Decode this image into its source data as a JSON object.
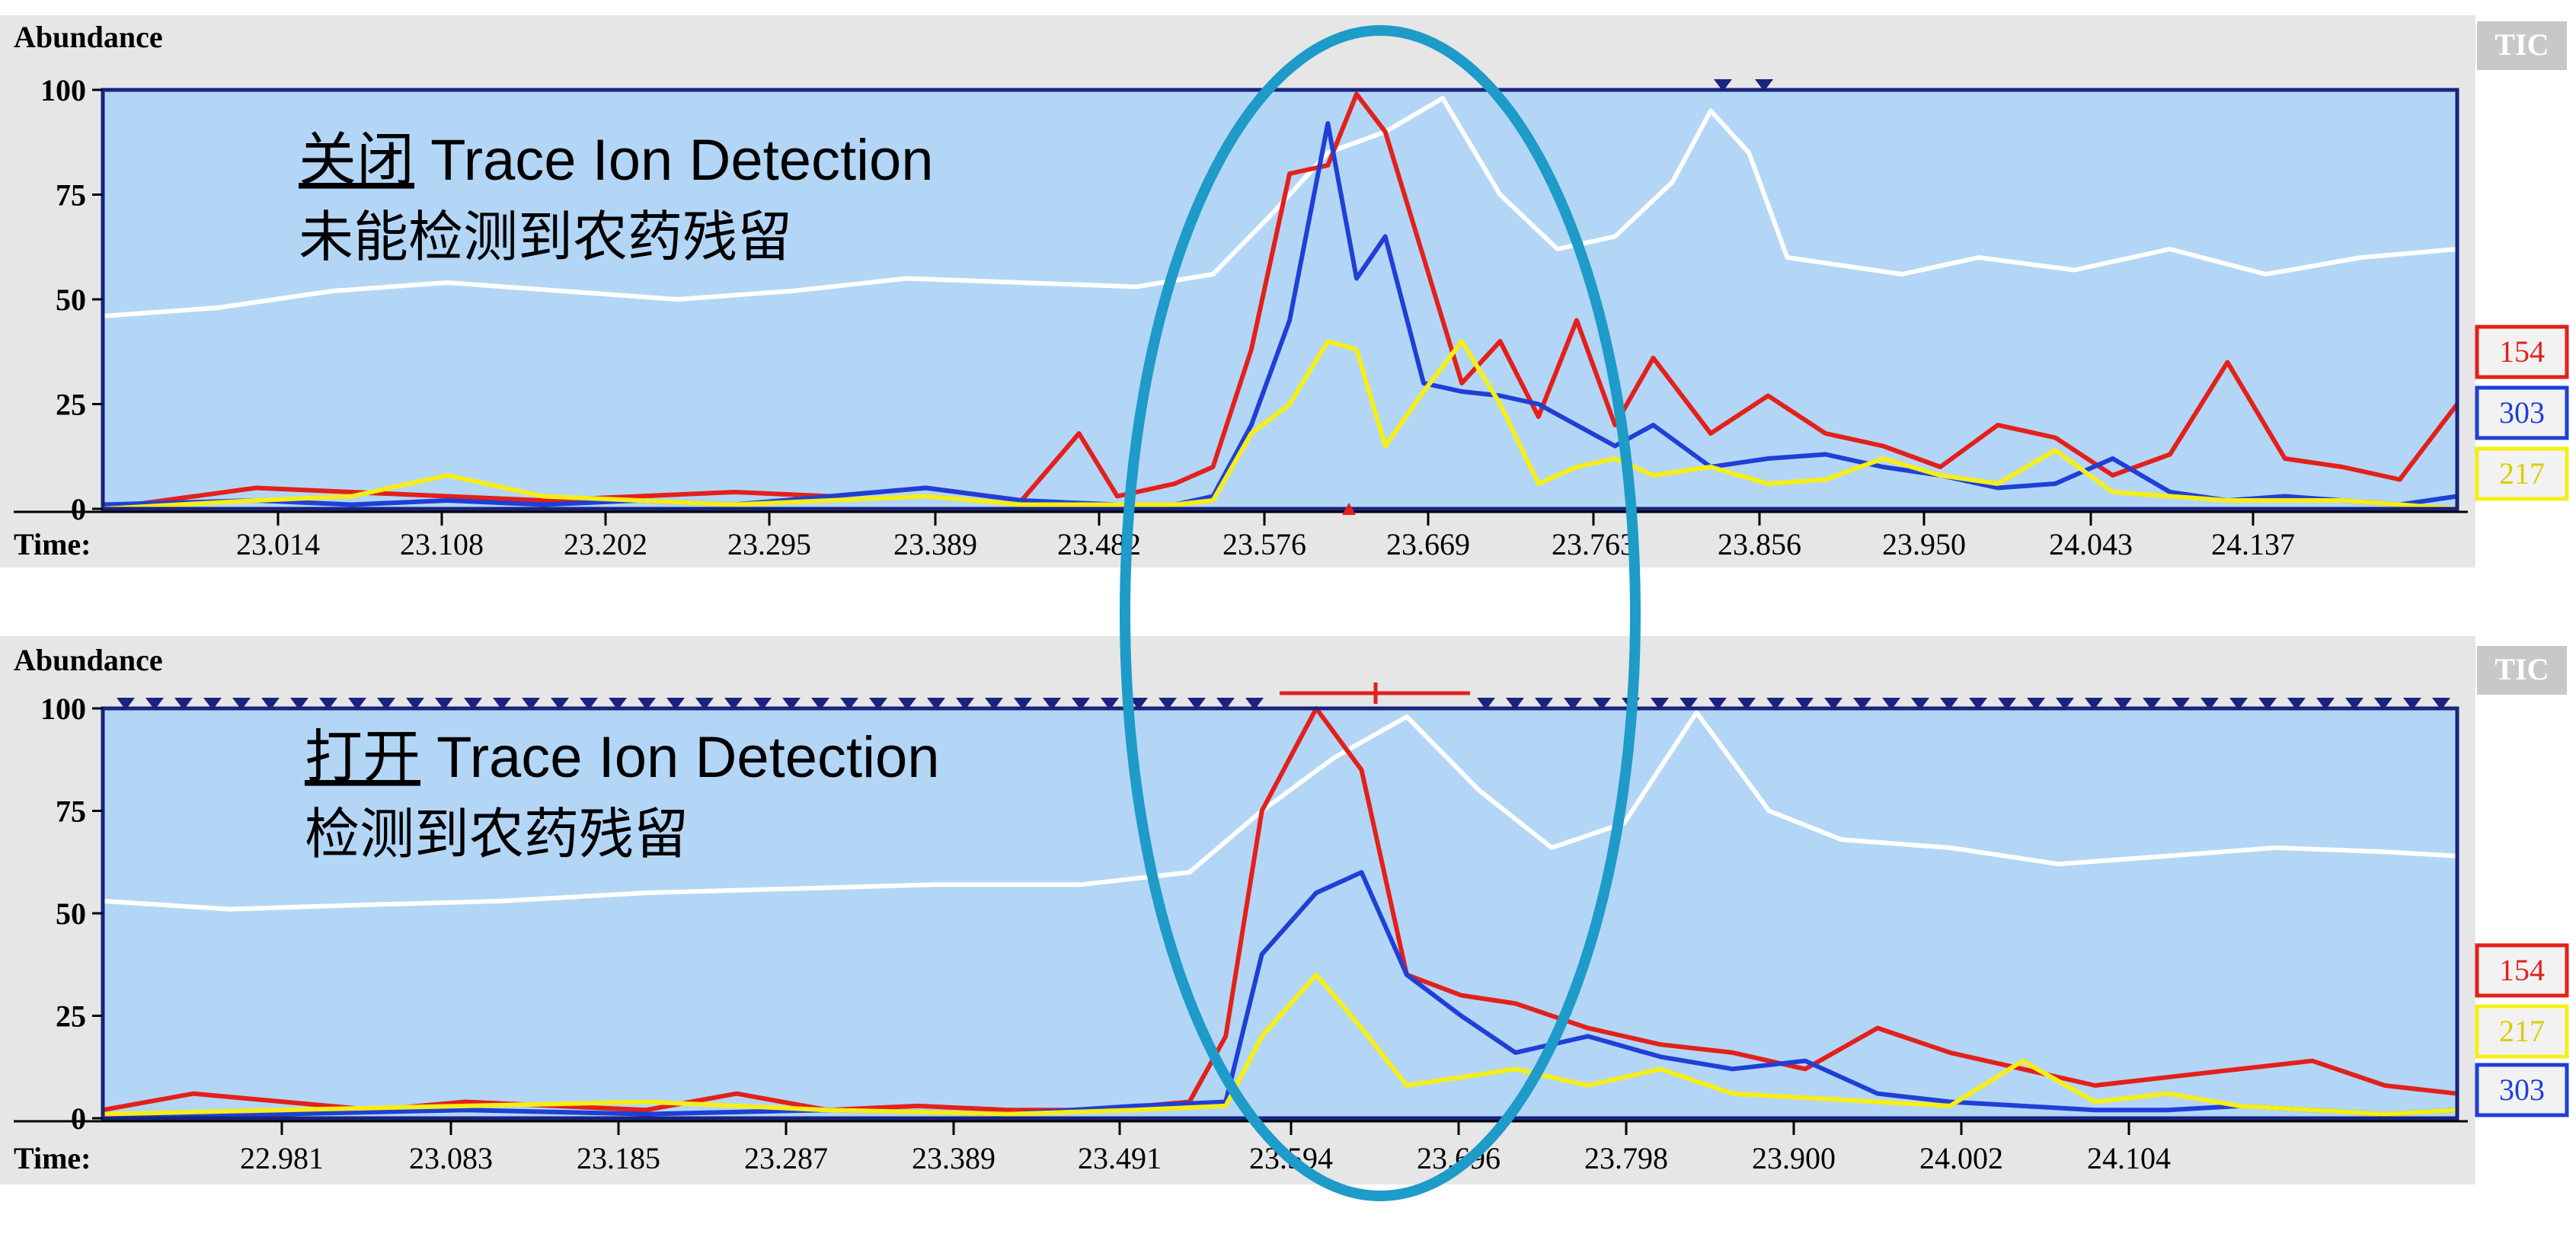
{
  "chart_data": [
    {
      "type": "line",
      "ylabel": "Abundance",
      "xlabel": "Time:",
      "ylim": [
        0,
        100
      ],
      "xlim": [
        22.92,
        24.15
      ],
      "yticks": [
        "0",
        "25",
        "50",
        "75",
        "100"
      ],
      "xticks": [
        "23.014",
        "23.108",
        "23.202",
        "23.295",
        "23.389",
        "23.482",
        "23.576",
        "23.669",
        "23.763",
        "23.856",
        "23.950",
        "24.043",
        "24.137"
      ],
      "annotation": {
        "emphasis": "关闭",
        "title": " Trace Ion Detection",
        "subtitle": "未能检测到农药残留"
      },
      "tic_label": "TIC",
      "series": [
        {
          "name": "154",
          "color": "#e3201b",
          "x": [
            22.92,
            23.0,
            23.05,
            23.1,
            23.15,
            23.2,
            23.25,
            23.3,
            23.35,
            23.4,
            23.43,
            23.45,
            23.48,
            23.5,
            23.52,
            23.54,
            23.56,
            23.575,
            23.59,
            23.61,
            23.63,
            23.65,
            23.67,
            23.69,
            23.71,
            23.73,
            23.76,
            23.79,
            23.82,
            23.85,
            23.88,
            23.91,
            23.94,
            23.97,
            24.0,
            24.03,
            24.06,
            24.09,
            24.12,
            24.15
          ],
          "y": [
            0,
            5,
            4,
            3,
            2,
            3,
            4,
            3,
            5,
            2,
            18,
            3,
            6,
            10,
            38,
            80,
            82,
            99,
            90,
            60,
            30,
            40,
            22,
            45,
            20,
            36,
            18,
            27,
            18,
            15,
            10,
            20,
            17,
            8,
            13,
            35,
            12,
            10,
            7,
            25
          ]
        },
        {
          "name": "303",
          "color": "#1f3fd6",
          "x": [
            22.92,
            23.0,
            23.05,
            23.1,
            23.15,
            23.2,
            23.25,
            23.3,
            23.35,
            23.4,
            23.45,
            23.48,
            23.5,
            23.52,
            23.54,
            23.56,
            23.575,
            23.59,
            23.61,
            23.63,
            23.65,
            23.67,
            23.69,
            23.71,
            23.73,
            23.76,
            23.79,
            23.82,
            23.85,
            23.88,
            23.91,
            23.94,
            23.97,
            24.0,
            24.03,
            24.06,
            24.09,
            24.12,
            24.15
          ],
          "y": [
            1,
            2,
            1,
            2,
            1,
            2,
            1,
            3,
            5,
            2,
            1,
            1,
            3,
            20,
            45,
            92,
            55,
            65,
            30,
            28,
            27,
            25,
            20,
            15,
            20,
            10,
            12,
            13,
            10,
            8,
            5,
            6,
            12,
            4,
            2,
            3,
            2,
            1,
            3
          ]
        },
        {
          "name": "217",
          "color": "#f5ee18",
          "x": [
            22.92,
            23.0,
            23.05,
            23.1,
            23.15,
            23.2,
            23.25,
            23.3,
            23.35,
            23.4,
            23.45,
            23.48,
            23.5,
            23.52,
            23.54,
            23.56,
            23.575,
            23.59,
            23.61,
            23.63,
            23.65,
            23.67,
            23.69,
            23.71,
            23.73,
            23.76,
            23.79,
            23.82,
            23.85,
            23.88,
            23.91,
            23.94,
            23.97,
            24.0,
            24.03,
            24.06,
            24.09,
            24.12,
            24.15
          ],
          "y": [
            0,
            2,
            3,
            8,
            3,
            2,
            1,
            2,
            3,
            1,
            1,
            1,
            2,
            18,
            25,
            40,
            38,
            15,
            28,
            40,
            25,
            6,
            10,
            12,
            8,
            10,
            6,
            7,
            12,
            8,
            6,
            14,
            4,
            3,
            2,
            2,
            2,
            1,
            0
          ]
        },
        {
          "name": "TIC",
          "color": "#ffffff",
          "x": [
            22.92,
            22.98,
            23.04,
            23.1,
            23.16,
            23.22,
            23.28,
            23.34,
            23.4,
            23.46,
            23.5,
            23.53,
            23.56,
            23.59,
            23.62,
            23.65,
            23.68,
            23.71,
            23.74,
            23.76,
            23.78,
            23.8,
            23.83,
            23.86,
            23.9,
            23.95,
            24.0,
            24.05,
            24.1,
            24.15
          ],
          "y": [
            46,
            48,
            52,
            54,
            52,
            50,
            52,
            55,
            54,
            53,
            56,
            70,
            85,
            90,
            98,
            75,
            62,
            65,
            78,
            95,
            85,
            60,
            58,
            56,
            60,
            57,
            62,
            56,
            60,
            62
          ]
        }
      ]
    },
    {
      "type": "line",
      "ylabel": "Abundance",
      "xlabel": "Time:",
      "ylim": [
        0,
        100
      ],
      "xlim": [
        22.88,
        24.18
      ],
      "yticks": [
        "0",
        "25",
        "50",
        "75",
        "100"
      ],
      "xticks": [
        "22.981",
        "23.083",
        "23.185",
        "23.287",
        "23.389",
        "23.491",
        "23.594",
        "23.696",
        "23.798",
        "23.900",
        "24.002",
        "24.104"
      ],
      "annotation": {
        "emphasis": "打开",
        "title": " Trace Ion Detection",
        "subtitle": "检测到农药残留"
      },
      "tic_label": "TIC",
      "series": [
        {
          "name": "154",
          "color": "#e3201b",
          "x": [
            22.88,
            22.93,
            22.98,
            23.03,
            23.08,
            23.13,
            23.18,
            23.23,
            23.28,
            23.33,
            23.38,
            23.43,
            23.48,
            23.5,
            23.52,
            23.55,
            23.575,
            23.6,
            23.63,
            23.66,
            23.7,
            23.74,
            23.78,
            23.82,
            23.86,
            23.9,
            23.94,
            23.98,
            24.02,
            24.06,
            24.1,
            24.14,
            24.18
          ],
          "y": [
            2,
            6,
            4,
            2,
            4,
            3,
            2,
            6,
            2,
            3,
            2,
            2,
            4,
            20,
            75,
            100,
            85,
            35,
            30,
            28,
            22,
            18,
            16,
            12,
            22,
            16,
            12,
            8,
            10,
            12,
            14,
            8,
            6
          ]
        },
        {
          "name": "303",
          "color": "#1f3fd6",
          "x": [
            22.88,
            22.98,
            23.08,
            23.18,
            23.28,
            23.38,
            23.45,
            23.5,
            23.52,
            23.55,
            23.575,
            23.6,
            23.63,
            23.66,
            23.7,
            23.74,
            23.78,
            23.82,
            23.86,
            23.9,
            23.94,
            23.98,
            24.02,
            24.06,
            24.1,
            24.14,
            24.18
          ],
          "y": [
            1,
            1,
            2,
            1,
            2,
            1,
            3,
            4,
            40,
            55,
            60,
            35,
            25,
            16,
            20,
            15,
            12,
            14,
            6,
            4,
            3,
            2,
            2,
            3,
            2,
            1,
            2
          ]
        },
        {
          "name": "217",
          "color": "#f5ee18",
          "x": [
            22.88,
            22.98,
            23.08,
            23.18,
            23.28,
            23.38,
            23.45,
            23.5,
            23.52,
            23.55,
            23.575,
            23.6,
            23.63,
            23.66,
            23.7,
            23.74,
            23.78,
            23.82,
            23.86,
            23.9,
            23.94,
            23.98,
            24.02,
            24.06,
            24.1,
            24.14,
            24.18
          ],
          "y": [
            1,
            2,
            3,
            4,
            2,
            1,
            2,
            3,
            20,
            35,
            22,
            8,
            10,
            12,
            8,
            12,
            6,
            5,
            4,
            3,
            14,
            4,
            6,
            3,
            2,
            1,
            2
          ]
        },
        {
          "name": "TIC",
          "color": "#ffffff",
          "x": [
            22.88,
            22.95,
            23.02,
            23.1,
            23.18,
            23.26,
            23.34,
            23.42,
            23.48,
            23.52,
            23.56,
            23.6,
            23.64,
            23.68,
            23.72,
            23.76,
            23.8,
            23.84,
            23.9,
            23.96,
            24.02,
            24.08,
            24.14,
            24.18
          ],
          "y": [
            53,
            51,
            52,
            53,
            55,
            56,
            57,
            57,
            60,
            75,
            88,
            98,
            80,
            66,
            72,
            99,
            75,
            68,
            66,
            62,
            64,
            66,
            65,
            64
          ]
        }
      ]
    }
  ]
}
